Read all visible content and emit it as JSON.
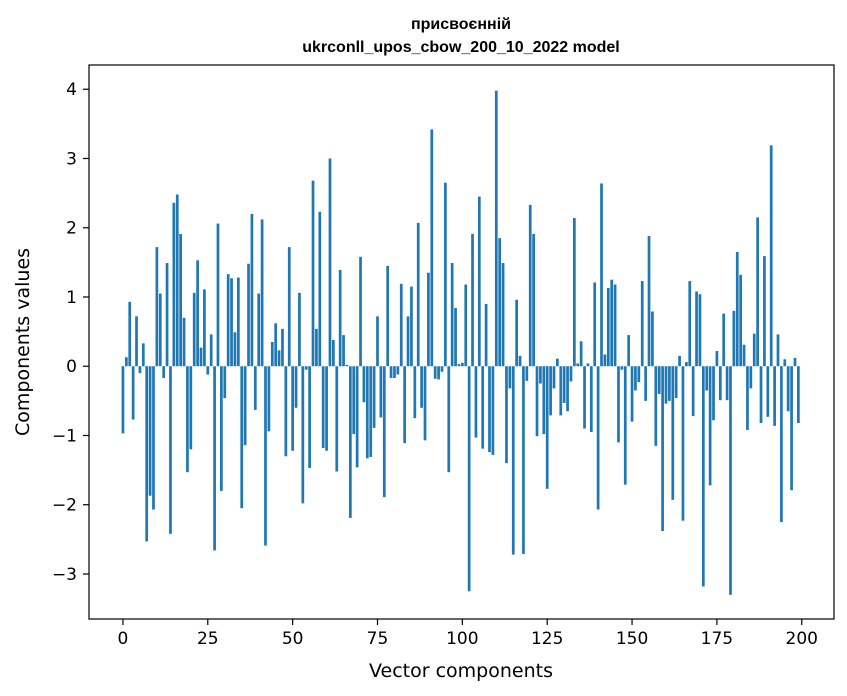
{
  "chart_data": {
    "type": "bar",
    "title_line1": "присвоєнній",
    "title_line2": "ukrconll_upos_cbow_200_10_2022 model",
    "xlabel": "Vector components",
    "ylabel": "Components values",
    "xlim": [
      -10,
      209.5
    ],
    "ylim": [
      -3.65,
      4.35
    ],
    "xticks": [
      0,
      25,
      50,
      75,
      100,
      125,
      150,
      175,
      200
    ],
    "yticks": [
      -3,
      -2,
      -1,
      0,
      1,
      2,
      3,
      4
    ],
    "xtick_labels": [
      "0",
      "25",
      "50",
      "75",
      "100",
      "125",
      "150",
      "175",
      "200"
    ],
    "ytick_labels": [
      "−3",
      "−2",
      "−1",
      "0",
      "1",
      "2",
      "3",
      "4"
    ],
    "bar_color": "#1f77b4",
    "grid": false,
    "x": [
      0,
      1,
      2,
      3,
      4,
      5,
      6,
      7,
      8,
      9,
      10,
      11,
      12,
      13,
      14,
      15,
      16,
      17,
      18,
      19,
      20,
      21,
      22,
      23,
      24,
      25,
      26,
      27,
      28,
      29,
      30,
      31,
      32,
      33,
      34,
      35,
      36,
      37,
      38,
      39,
      40,
      41,
      42,
      43,
      44,
      45,
      46,
      47,
      48,
      49,
      50,
      51,
      52,
      53,
      54,
      55,
      56,
      57,
      58,
      59,
      60,
      61,
      62,
      63,
      64,
      65,
      66,
      67,
      68,
      69,
      70,
      71,
      72,
      73,
      74,
      75,
      76,
      77,
      78,
      79,
      80,
      81,
      82,
      83,
      84,
      85,
      86,
      87,
      88,
      89,
      90,
      91,
      92,
      93,
      94,
      95,
      96,
      97,
      98,
      99,
      100,
      101,
      102,
      103,
      104,
      105,
      106,
      107,
      108,
      109,
      110,
      111,
      112,
      113,
      114,
      115,
      116,
      117,
      118,
      119,
      120,
      121,
      122,
      123,
      124,
      125,
      126,
      127,
      128,
      129,
      130,
      131,
      132,
      133,
      134,
      135,
      136,
      137,
      138,
      139,
      140,
      141,
      142,
      143,
      144,
      145,
      146,
      147,
      148,
      149,
      150,
      151,
      152,
      153,
      154,
      155,
      156,
      157,
      158,
      159,
      160,
      161,
      162,
      163,
      164,
      165,
      166,
      167,
      168,
      169,
      170,
      171,
      172,
      173,
      174,
      175,
      176,
      177,
      178,
      179,
      180,
      181,
      182,
      183,
      184,
      185,
      186,
      187,
      188,
      189,
      190,
      191,
      192,
      193,
      194,
      195,
      196,
      197,
      198,
      199
    ],
    "values": [
      -0.97,
      0.13,
      0.93,
      -0.77,
      0.72,
      -0.1,
      0.33,
      -2.53,
      -1.87,
      -2.07,
      1.72,
      1.05,
      -0.17,
      1.49,
      -2.42,
      2.36,
      2.48,
      1.91,
      0.7,
      -1.53,
      -1.2,
      1.06,
      1.53,
      0.27,
      1.11,
      -0.12,
      0.46,
      -2.66,
      2.06,
      -1.8,
      -0.46,
      1.33,
      1.27,
      0.49,
      1.28,
      -2.05,
      -1.14,
      1.48,
      2.2,
      -0.63,
      1.05,
      2.12,
      -2.59,
      -0.94,
      0.35,
      0.62,
      0.23,
      0.54,
      -1.3,
      1.72,
      -1.22,
      -0.6,
      1.06,
      -1.98,
      -0.05,
      -1.47,
      2.68,
      0.54,
      2.23,
      -1.18,
      -1.22,
      3.0,
      0.38,
      -1.52,
      1.39,
      0.45,
      0.02,
      -2.19,
      -0.98,
      -1.46,
      1.58,
      -0.52,
      -1.33,
      -1.31,
      -0.89,
      0.72,
      -0.74,
      -1.89,
      1.45,
      -0.17,
      -0.17,
      -0.12,
      1.19,
      -1.11,
      0.72,
      1.15,
      -0.75,
      2.07,
      -0.6,
      -1.07,
      1.35,
      3.42,
      -0.18,
      -0.19,
      -0.08,
      2.65,
      -1.53,
      1.49,
      0.84,
      0.03,
      0.05,
      1.18,
      -3.25,
      1.91,
      -1.03,
      2.45,
      -1.19,
      0.9,
      -1.24,
      -1.28,
      3.98,
      1.85,
      1.49,
      -1.4,
      -0.32,
      -2.72,
      0.96,
      0.15,
      -2.71,
      -0.21,
      2.33,
      1.91,
      -1.01,
      -0.25,
      -0.98,
      -1.77,
      -0.71,
      -0.32,
      0.11,
      -0.71,
      -0.53,
      -0.65,
      -0.22,
      2.14,
      0.04,
      0.36,
      -0.9,
      0.04,
      -0.95,
      1.21,
      -2.07,
      2.64,
      0.17,
      1.13,
      1.25,
      1.18,
      -1.1,
      -0.05,
      -1.71,
      0.45,
      -0.8,
      -0.35,
      -0.23,
      1.23,
      -0.5,
      1.88,
      0.79,
      -1.15,
      -0.4,
      -2.38,
      -0.54,
      -0.5,
      -1.93,
      -0.46,
      0.15,
      -2.23,
      0.06,
      1.23,
      -0.72,
      1.08,
      1.04,
      -3.18,
      -0.35,
      -1.72,
      -0.78,
      0.22,
      -0.49,
      0.76,
      -0.49,
      -3.3,
      0.8,
      1.65,
      1.32,
      0.31,
      -0.92,
      -0.32,
      0.47,
      2.15,
      -0.82,
      1.59,
      -0.73,
      3.19,
      -0.86,
      0.46,
      -2.25,
      0.1,
      -0.65,
      -1.79,
      0.12,
      -0.82
    ]
  }
}
